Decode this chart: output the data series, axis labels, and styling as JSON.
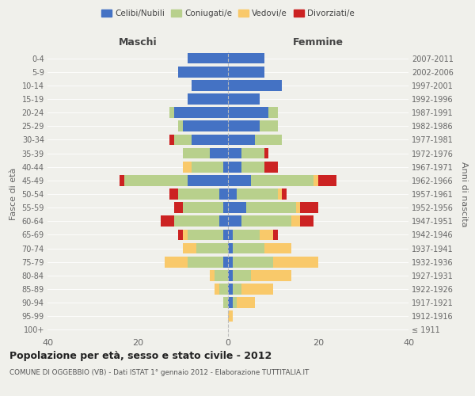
{
  "age_groups": [
    "100+",
    "95-99",
    "90-94",
    "85-89",
    "80-84",
    "75-79",
    "70-74",
    "65-69",
    "60-64",
    "55-59",
    "50-54",
    "45-49",
    "40-44",
    "35-39",
    "30-34",
    "25-29",
    "20-24",
    "15-19",
    "10-14",
    "5-9",
    "0-4"
  ],
  "birth_years": [
    "≤ 1911",
    "1912-1916",
    "1917-1921",
    "1922-1926",
    "1927-1931",
    "1932-1936",
    "1937-1941",
    "1942-1946",
    "1947-1951",
    "1952-1956",
    "1957-1961",
    "1962-1966",
    "1967-1971",
    "1972-1976",
    "1977-1981",
    "1982-1986",
    "1987-1991",
    "1992-1996",
    "1997-2001",
    "2002-2006",
    "2007-2011"
  ],
  "maschi": {
    "celibi": [
      0,
      0,
      0,
      0,
      0,
      1,
      0,
      1,
      2,
      1,
      2,
      9,
      1,
      4,
      8,
      10,
      12,
      9,
      8,
      11,
      9
    ],
    "coniugati": [
      0,
      0,
      1,
      2,
      3,
      8,
      7,
      8,
      10,
      9,
      9,
      14,
      7,
      6,
      4,
      1,
      1,
      0,
      0,
      0,
      0
    ],
    "vedovi": [
      0,
      0,
      0,
      1,
      1,
      5,
      3,
      1,
      0,
      0,
      0,
      0,
      2,
      0,
      0,
      0,
      0,
      0,
      0,
      0,
      0
    ],
    "divorziati": [
      0,
      0,
      0,
      0,
      0,
      0,
      0,
      1,
      3,
      2,
      2,
      1,
      0,
      0,
      1,
      0,
      0,
      0,
      0,
      0,
      0
    ]
  },
  "femmine": {
    "nubili": [
      0,
      0,
      1,
      1,
      1,
      1,
      1,
      1,
      3,
      4,
      2,
      5,
      3,
      3,
      6,
      7,
      9,
      7,
      12,
      8,
      8
    ],
    "coniugate": [
      0,
      0,
      1,
      2,
      4,
      9,
      7,
      6,
      11,
      11,
      9,
      14,
      5,
      5,
      6,
      4,
      2,
      0,
      0,
      0,
      0
    ],
    "vedove": [
      0,
      1,
      4,
      7,
      9,
      10,
      6,
      3,
      2,
      1,
      1,
      1,
      0,
      0,
      0,
      0,
      0,
      0,
      0,
      0,
      0
    ],
    "divorziate": [
      0,
      0,
      0,
      0,
      0,
      0,
      0,
      1,
      3,
      4,
      1,
      4,
      3,
      1,
      0,
      0,
      0,
      0,
      0,
      0,
      0
    ]
  },
  "colors": {
    "celibi_nubili": "#4472c4",
    "coniugati": "#b8d08c",
    "vedovi": "#f9c96a",
    "divorziati": "#cc2222"
  },
  "title": "Popolazione per età, sesso e stato civile - 2012",
  "subtitle": "COMUNE DI OGGEBBIO (VB) - Dati ISTAT 1° gennaio 2012 - Elaborazione TUTTITALIA.IT",
  "xlabel_left": "Maschi",
  "xlabel_right": "Femmine",
  "ylabel_left": "Fasce di età",
  "ylabel_right": "Anni di nascita",
  "xlim": 40,
  "legend_labels": [
    "Celibi/Nubili",
    "Coniugati/e",
    "Vedovi/e",
    "Divorziati/e"
  ],
  "bg_color": "#f0f0eb",
  "bar_height": 0.8
}
